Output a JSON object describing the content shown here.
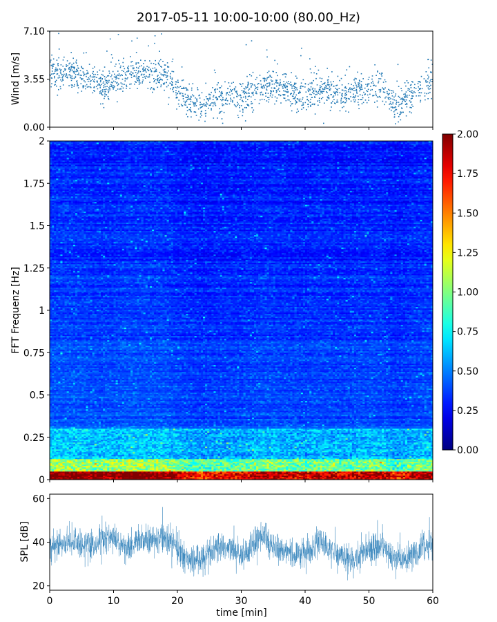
{
  "chart_data": [
    {
      "type": "scatter",
      "title": "2017-05-11 10:00-10:00 (80.00_Hz)",
      "ylabel": "Wind [m/s]",
      "xlim": [
        0,
        60
      ],
      "ylim": [
        0,
        7.1
      ],
      "yticks": [
        "0.00",
        "3.55",
        "7.10"
      ],
      "color": "#1f77b4",
      "trend": [
        [
          0,
          3.9
        ],
        [
          2,
          4.1
        ],
        [
          4,
          4.0
        ],
        [
          6,
          3.5
        ],
        [
          8,
          3.2
        ],
        [
          10,
          3.4
        ],
        [
          12,
          4.1
        ],
        [
          14,
          4.0
        ],
        [
          16,
          3.9
        ],
        [
          18,
          3.8
        ],
        [
          20,
          2.6
        ],
        [
          22,
          1.9
        ],
        [
          24,
          1.6
        ],
        [
          26,
          2.0
        ],
        [
          28,
          2.2
        ],
        [
          30,
          2.1
        ],
        [
          32,
          2.8
        ],
        [
          34,
          3.2
        ],
        [
          36,
          2.8
        ],
        [
          38,
          2.4
        ],
        [
          40,
          2.2
        ],
        [
          42,
          2.8
        ],
        [
          44,
          2.6
        ],
        [
          46,
          2.3
        ],
        [
          48,
          2.6
        ],
        [
          50,
          2.9
        ],
        [
          52,
          3.1
        ],
        [
          54,
          1.4
        ],
        [
          56,
          2.2
        ],
        [
          58,
          3.0
        ],
        [
          60,
          3.4
        ]
      ],
      "spread": 0.6,
      "n_points": 1800
    },
    {
      "type": "heatmap",
      "ylabel": "FFT Frequenz [Hz]",
      "xlim": [
        0,
        60
      ],
      "ylim": [
        0,
        2
      ],
      "yticks": [
        "0",
        "0.25",
        "0.5",
        "0.75",
        "1",
        "1.25",
        "1.5",
        "1.75",
        "2"
      ],
      "colormap": "jet",
      "colorbar": {
        "vmin": 0,
        "vmax": 2,
        "ticks": [
          "0.00",
          "0.25",
          "0.50",
          "0.75",
          "1.00",
          "1.25",
          "1.50",
          "1.75",
          "2.00"
        ]
      },
      "n_time_bins": 180,
      "n_freq_bins": 245
    },
    {
      "type": "line",
      "ylabel": "SPL [dB]",
      "xlabel": "time [min]",
      "xlim": [
        0,
        60
      ],
      "ylim": [
        18,
        62
      ],
      "yticks": [
        "20",
        "40",
        "60"
      ],
      "xticks": [
        "0",
        "10",
        "20",
        "30",
        "40",
        "50",
        "60"
      ],
      "color": "#1f77b4",
      "trend": [
        [
          0,
          38
        ],
        [
          2,
          39
        ],
        [
          4,
          40
        ],
        [
          6,
          38
        ],
        [
          8,
          41
        ],
        [
          10,
          42
        ],
        [
          12,
          37
        ],
        [
          14,
          40
        ],
        [
          16,
          41
        ],
        [
          18,
          43
        ],
        [
          20,
          36
        ],
        [
          22,
          31
        ],
        [
          24,
          33
        ],
        [
          26,
          38
        ],
        [
          28,
          37
        ],
        [
          30,
          34
        ],
        [
          32,
          39
        ],
        [
          33,
          44
        ],
        [
          35,
          37
        ],
        [
          37,
          36
        ],
        [
          39,
          34
        ],
        [
          41,
          37
        ],
        [
          42,
          41
        ],
        [
          44,
          36
        ],
        [
          46,
          33
        ],
        [
          48,
          32
        ],
        [
          50,
          37
        ],
        [
          52,
          39
        ],
        [
          54,
          33
        ],
        [
          56,
          32
        ],
        [
          58,
          37
        ],
        [
          60,
          39
        ]
      ]
    }
  ]
}
